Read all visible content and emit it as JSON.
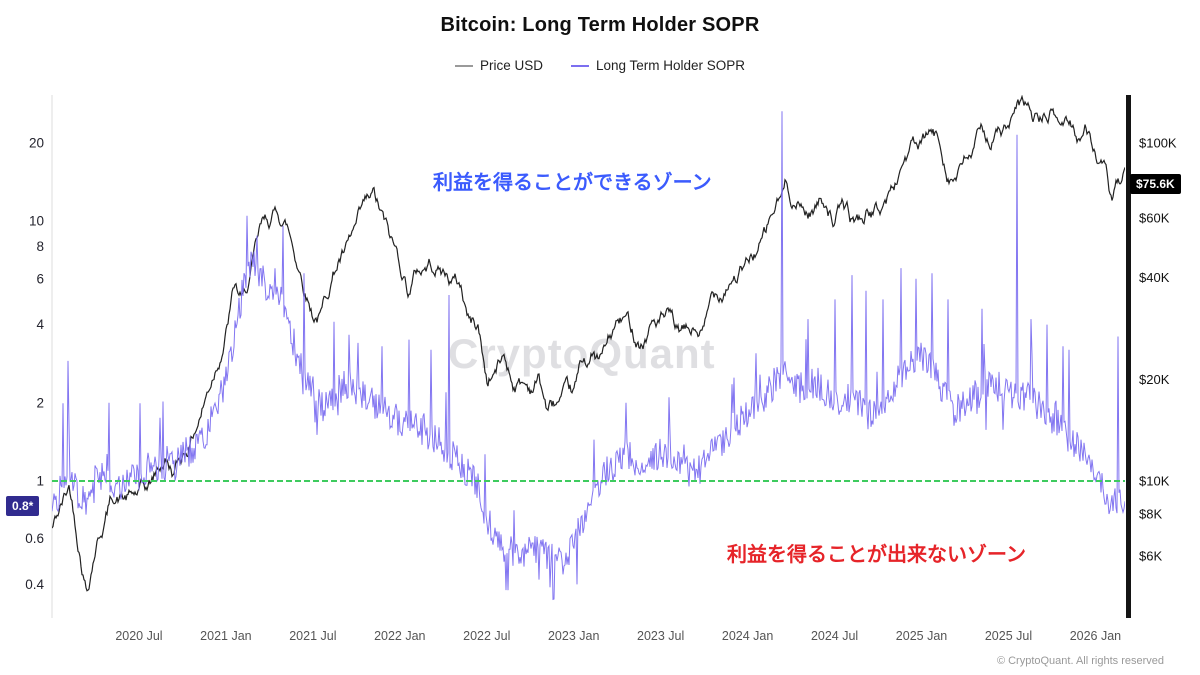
{
  "title": "Bitcoin: Long Term Holder SOPR",
  "legend": [
    {
      "label": "Price USD",
      "color": "#9a9a9a"
    },
    {
      "label": "Long Term Holder SOPR",
      "color": "#7c6ff0"
    }
  ],
  "watermark": "CryptoQuant",
  "footer": "© CryptoQuant. All rights reserved",
  "annotations": {
    "profit": {
      "text": "利益を得ることができるゾーン",
      "color": "#3b5bfd"
    },
    "loss": {
      "text": "利益を得ることが出来ないゾーン",
      "color": "#e62429"
    }
  },
  "badges": {
    "left": {
      "text": "0.8*",
      "bg": "#312b8f"
    },
    "right": {
      "text": "$75.6K",
      "bg": "#000000"
    }
  },
  "chart_data": {
    "type": "line",
    "title": "Bitcoin: Long Term Holder SOPR",
    "x_domain": [
      2020.0,
      2026.17
    ],
    "x_ticks": [
      "2020 Jul",
      "2021 Jan",
      "2021 Jul",
      "2022 Jan",
      "2022 Jul",
      "2023 Jan",
      "2023 Jul",
      "2024 Jan",
      "2024 Jul",
      "2025 Jan",
      "2025 Jul",
      "2026 Jan"
    ],
    "x_tick_positions": [
      2020.5,
      2021.0,
      2021.5,
      2022.0,
      2022.5,
      2023.0,
      2023.5,
      2024.0,
      2024.5,
      2025.0,
      2025.5,
      2026.0
    ],
    "left_axis": {
      "scale": "log",
      "ticks": [
        20,
        10,
        8,
        6,
        4,
        2,
        1,
        0.6,
        0.4
      ],
      "domain": [
        0.2969,
        30.6
      ],
      "current": 0.8
    },
    "right_axis": {
      "scale": "log",
      "domain": [
        3933,
        138700
      ],
      "current_value": 75600,
      "current_label": "$75.6K",
      "ticks": [
        {
          "label": "$100K",
          "value": 100000
        },
        {
          "label": "$60K",
          "value": 60000
        },
        {
          "label": "$40K",
          "value": 40000
        },
        {
          "label": "$20K",
          "value": 20000
        },
        {
          "label": "$10K",
          "value": 10000
        },
        {
          "label": "$8K",
          "value": 8000
        },
        {
          "label": "$6K",
          "value": 6000
        }
      ]
    },
    "baseline": {
      "value": 1,
      "color": "#3ecb5e"
    },
    "series": [
      {
        "name": "Price USD",
        "axis": "right",
        "color": "#161616",
        "width": 1.2,
        "smooth": true,
        "jitter": 0.035,
        "anchors": [
          [
            2020.0,
            7200
          ],
          [
            2020.1,
            9500
          ],
          [
            2020.2,
            5000
          ],
          [
            2020.25,
            6800
          ],
          [
            2020.35,
            9300
          ],
          [
            2020.45,
            8900
          ],
          [
            2020.55,
            9150
          ],
          [
            2020.65,
            11500
          ],
          [
            2020.7,
            10500
          ],
          [
            2020.8,
            13500
          ],
          [
            2020.9,
            19000
          ],
          [
            2021.0,
            29000
          ],
          [
            2021.05,
            38000
          ],
          [
            2021.1,
            33000
          ],
          [
            2021.2,
            52000
          ],
          [
            2021.3,
            61000
          ],
          [
            2021.35,
            57000
          ],
          [
            2021.4,
            47000
          ],
          [
            2021.5,
            33000
          ],
          [
            2021.55,
            32000
          ],
          [
            2021.6,
            40000
          ],
          [
            2021.65,
            47000
          ],
          [
            2021.7,
            48000
          ],
          [
            2021.8,
            60000
          ],
          [
            2021.85,
            64000
          ],
          [
            2021.9,
            56000
          ],
          [
            2021.95,
            48000
          ],
          [
            2022.0,
            43000
          ],
          [
            2022.05,
            37000
          ],
          [
            2022.1,
            42000
          ],
          [
            2022.2,
            45000
          ],
          [
            2022.3,
            40000
          ],
          [
            2022.35,
            38000
          ],
          [
            2022.4,
            30000
          ],
          [
            2022.45,
            29000
          ],
          [
            2022.5,
            20000
          ],
          [
            2022.55,
            21500
          ],
          [
            2022.6,
            23500
          ],
          [
            2022.65,
            20000
          ],
          [
            2022.7,
            19800
          ],
          [
            2022.75,
            19200
          ],
          [
            2022.8,
            20500
          ],
          [
            2022.85,
            16200
          ],
          [
            2022.9,
            16800
          ],
          [
            2023.0,
            16600
          ],
          [
            2023.05,
            21000
          ],
          [
            2023.1,
            23000
          ],
          [
            2023.15,
            22000
          ],
          [
            2023.2,
            25000
          ],
          [
            2023.25,
            28300
          ],
          [
            2023.3,
            29000
          ],
          [
            2023.35,
            27000
          ],
          [
            2023.4,
            26500
          ],
          [
            2023.45,
            30000
          ],
          [
            2023.5,
            30400
          ],
          [
            2023.55,
            29200
          ],
          [
            2023.6,
            26000
          ],
          [
            2023.65,
            26100
          ],
          [
            2023.7,
            27000
          ],
          [
            2023.75,
            26800
          ],
          [
            2023.8,
            34500
          ],
          [
            2023.85,
            37000
          ],
          [
            2023.9,
            42000
          ],
          [
            2024.0,
            43500
          ],
          [
            2024.05,
            48000
          ],
          [
            2024.1,
            52000
          ],
          [
            2024.15,
            61500
          ],
          [
            2024.2,
            68000
          ],
          [
            2024.22,
            73000
          ],
          [
            2024.3,
            66000
          ],
          [
            2024.35,
            63000
          ],
          [
            2024.4,
            67000
          ],
          [
            2024.45,
            70000
          ],
          [
            2024.5,
            61000
          ],
          [
            2024.55,
            65000
          ],
          [
            2024.6,
            58000
          ],
          [
            2024.65,
            59000
          ],
          [
            2024.7,
            63000
          ],
          [
            2024.75,
            62000
          ],
          [
            2024.8,
            68000
          ],
          [
            2024.85,
            75000
          ],
          [
            2024.9,
            91000
          ],
          [
            2024.95,
            98000
          ],
          [
            2025.0,
            94000
          ],
          [
            2025.05,
            102000
          ],
          [
            2025.1,
            97000
          ],
          [
            2025.15,
            84000
          ],
          [
            2025.2,
            82000
          ],
          [
            2025.25,
            87000
          ],
          [
            2025.3,
            95000
          ],
          [
            2025.35,
            104000
          ],
          [
            2025.4,
            103000
          ],
          [
            2025.45,
            108000
          ],
          [
            2025.5,
            109000
          ],
          [
            2025.55,
            118000
          ],
          [
            2025.6,
            121000
          ],
          [
            2025.65,
            113000
          ],
          [
            2025.7,
            116000
          ],
          [
            2025.75,
            121000
          ],
          [
            2025.8,
            112000
          ],
          [
            2025.85,
            117000
          ],
          [
            2025.9,
            108000
          ],
          [
            2025.95,
            111000
          ],
          [
            2026.0,
            96000
          ],
          [
            2026.05,
            82000
          ],
          [
            2026.08,
            70000
          ],
          [
            2026.1,
            66000
          ],
          [
            2026.12,
            69000
          ],
          [
            2026.14,
            72000
          ],
          [
            2026.17,
            75600
          ]
        ]
      },
      {
        "name": "Long Term Holder SOPR",
        "axis": "left",
        "color": "#7c6ff0",
        "width": 1,
        "smooth": false,
        "jitter": 0.13,
        "anchors": [
          [
            2020.0,
            0.75
          ],
          [
            2020.05,
            0.95
          ],
          [
            2020.1,
            1.0
          ],
          [
            2020.15,
            0.9
          ],
          [
            2020.2,
            0.85
          ],
          [
            2020.25,
            1.1
          ],
          [
            2020.3,
            1.0
          ],
          [
            2020.4,
            0.95
          ],
          [
            2020.5,
            1.05
          ],
          [
            2020.6,
            1.1
          ],
          [
            2020.7,
            1.15
          ],
          [
            2020.8,
            1.3
          ],
          [
            2020.9,
            1.6
          ],
          [
            2021.0,
            2.4
          ],
          [
            2021.05,
            3.6
          ],
          [
            2021.1,
            5.5
          ],
          [
            2021.15,
            7.0
          ],
          [
            2021.2,
            6.2
          ],
          [
            2021.25,
            5.0
          ],
          [
            2021.3,
            5.6
          ],
          [
            2021.35,
            4.2
          ],
          [
            2021.4,
            3.2
          ],
          [
            2021.45,
            2.6
          ],
          [
            2021.5,
            2.2
          ],
          [
            2021.55,
            1.9
          ],
          [
            2021.6,
            2.1
          ],
          [
            2021.7,
            2.4
          ],
          [
            2021.8,
            2.1
          ],
          [
            2021.9,
            1.9
          ],
          [
            2022.0,
            1.7
          ],
          [
            2022.1,
            1.6
          ],
          [
            2022.2,
            1.45
          ],
          [
            2022.3,
            1.25
          ],
          [
            2022.4,
            1.05
          ],
          [
            2022.45,
            0.95
          ],
          [
            2022.5,
            0.72
          ],
          [
            2022.55,
            0.62
          ],
          [
            2022.6,
            0.55
          ],
          [
            2022.7,
            0.52
          ],
          [
            2022.8,
            0.55
          ],
          [
            2022.9,
            0.48
          ],
          [
            2022.95,
            0.5
          ],
          [
            2023.0,
            0.56
          ],
          [
            2023.05,
            0.7
          ],
          [
            2023.1,
            0.85
          ],
          [
            2023.15,
            1.0
          ],
          [
            2023.2,
            1.1
          ],
          [
            2023.3,
            1.25
          ],
          [
            2023.4,
            1.15
          ],
          [
            2023.5,
            1.3
          ],
          [
            2023.6,
            1.15
          ],
          [
            2023.7,
            1.05
          ],
          [
            2023.8,
            1.3
          ],
          [
            2023.9,
            1.55
          ],
          [
            2024.0,
            1.8
          ],
          [
            2024.1,
            2.1
          ],
          [
            2024.2,
            2.7
          ],
          [
            2024.3,
            2.3
          ],
          [
            2024.4,
            2.4
          ],
          [
            2024.5,
            2.0
          ],
          [
            2024.6,
            2.1
          ],
          [
            2024.7,
            1.8
          ],
          [
            2024.8,
            2.1
          ],
          [
            2024.9,
            2.6
          ],
          [
            2025.0,
            3.0
          ],
          [
            2025.05,
            2.8
          ],
          [
            2025.1,
            2.4
          ],
          [
            2025.2,
            1.9
          ],
          [
            2025.3,
            2.1
          ],
          [
            2025.4,
            2.4
          ],
          [
            2025.5,
            2.2
          ],
          [
            2025.6,
            2.1
          ],
          [
            2025.7,
            1.9
          ],
          [
            2025.8,
            1.6
          ],
          [
            2025.9,
            1.35
          ],
          [
            2026.0,
            1.05
          ],
          [
            2026.05,
            0.9
          ],
          [
            2026.1,
            0.82
          ],
          [
            2026.15,
            0.85
          ],
          [
            2026.17,
            0.8
          ]
        ],
        "spikes": [
          [
            2020.09,
            2.9
          ],
          [
            2020.33,
            2.0
          ],
          [
            2020.62,
            1.75
          ],
          [
            2021.12,
            10.5
          ],
          [
            2021.18,
            8.8
          ],
          [
            2021.33,
            9.6
          ],
          [
            2021.45,
            6.3
          ],
          [
            2021.62,
            4.1
          ],
          [
            2021.76,
            3.4
          ],
          [
            2021.9,
            3.3
          ],
          [
            2022.05,
            3.5
          ],
          [
            2022.18,
            3.2
          ],
          [
            2022.28,
            5.2
          ],
          [
            2022.62,
            0.38
          ],
          [
            2022.88,
            0.35
          ],
          [
            2023.02,
            0.4
          ],
          [
            2023.3,
            2.0
          ],
          [
            2023.55,
            2.1
          ],
          [
            2023.92,
            2.5
          ],
          [
            2024.05,
            3.1
          ],
          [
            2024.2,
            26.5
          ],
          [
            2024.35,
            4.2
          ],
          [
            2024.5,
            5.0
          ],
          [
            2024.6,
            6.2
          ],
          [
            2024.68,
            5.4
          ],
          [
            2024.78,
            5.0
          ],
          [
            2024.88,
            6.6
          ],
          [
            2024.97,
            6.0
          ],
          [
            2025.06,
            6.3
          ],
          [
            2025.15,
            5.0
          ],
          [
            2025.35,
            4.6
          ],
          [
            2025.55,
            21.5
          ],
          [
            2025.63,
            4.2
          ],
          [
            2025.72,
            4.0
          ],
          [
            2025.85,
            3.2
          ],
          [
            2026.13,
            3.6
          ]
        ]
      }
    ]
  }
}
